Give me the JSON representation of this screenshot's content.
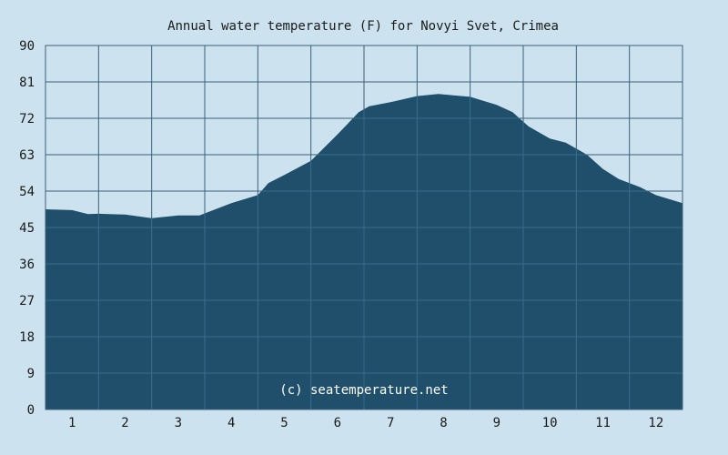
{
  "chart_data": {
    "type": "area",
    "title": "Annual water temperature (F) for Novyi Svet, Crimea",
    "xlabel": "",
    "ylabel": "",
    "ylim": [
      0,
      90
    ],
    "yticks": [
      "0",
      "9",
      "18",
      "27",
      "36",
      "45",
      "54",
      "63",
      "72",
      "81",
      "90"
    ],
    "xlim": [
      0.5,
      12.5
    ],
    "xticks": [
      "1",
      "2",
      "3",
      "4",
      "5",
      "6",
      "7",
      "8",
      "9",
      "10",
      "11",
      "12"
    ],
    "grid": true,
    "watermark": "(c) seatemperature.net",
    "x": [
      0.5,
      1.0,
      1.3,
      1.5,
      2.0,
      2.5,
      3.0,
      3.4,
      3.6,
      4.0,
      4.5,
      4.7,
      5.0,
      5.5,
      6.0,
      6.4,
      6.6,
      7.0,
      7.5,
      7.9,
      8.5,
      9.0,
      9.3,
      9.6,
      10.0,
      10.3,
      10.7,
      11.0,
      11.3,
      11.7,
      12.0,
      12.5
    ],
    "values": [
      49.5,
      49.3,
      48.3,
      48.4,
      48.2,
      47.3,
      48.0,
      48.0,
      49.0,
      51.0,
      53.0,
      56.0,
      58.0,
      61.5,
      68.0,
      73.5,
      75.0,
      76.0,
      77.5,
      78.0,
      77.3,
      75.3,
      73.5,
      70.0,
      67.0,
      66.0,
      63.0,
      59.5,
      57.0,
      55.0,
      53.0,
      51.0
    ],
    "colors": {
      "background": "#cce3ef",
      "area": "#1f4f6a",
      "grid_over_bg": "#3d5f7a",
      "grid_over_area": "#3a6d8c",
      "frame": "#3d5f7a"
    }
  }
}
